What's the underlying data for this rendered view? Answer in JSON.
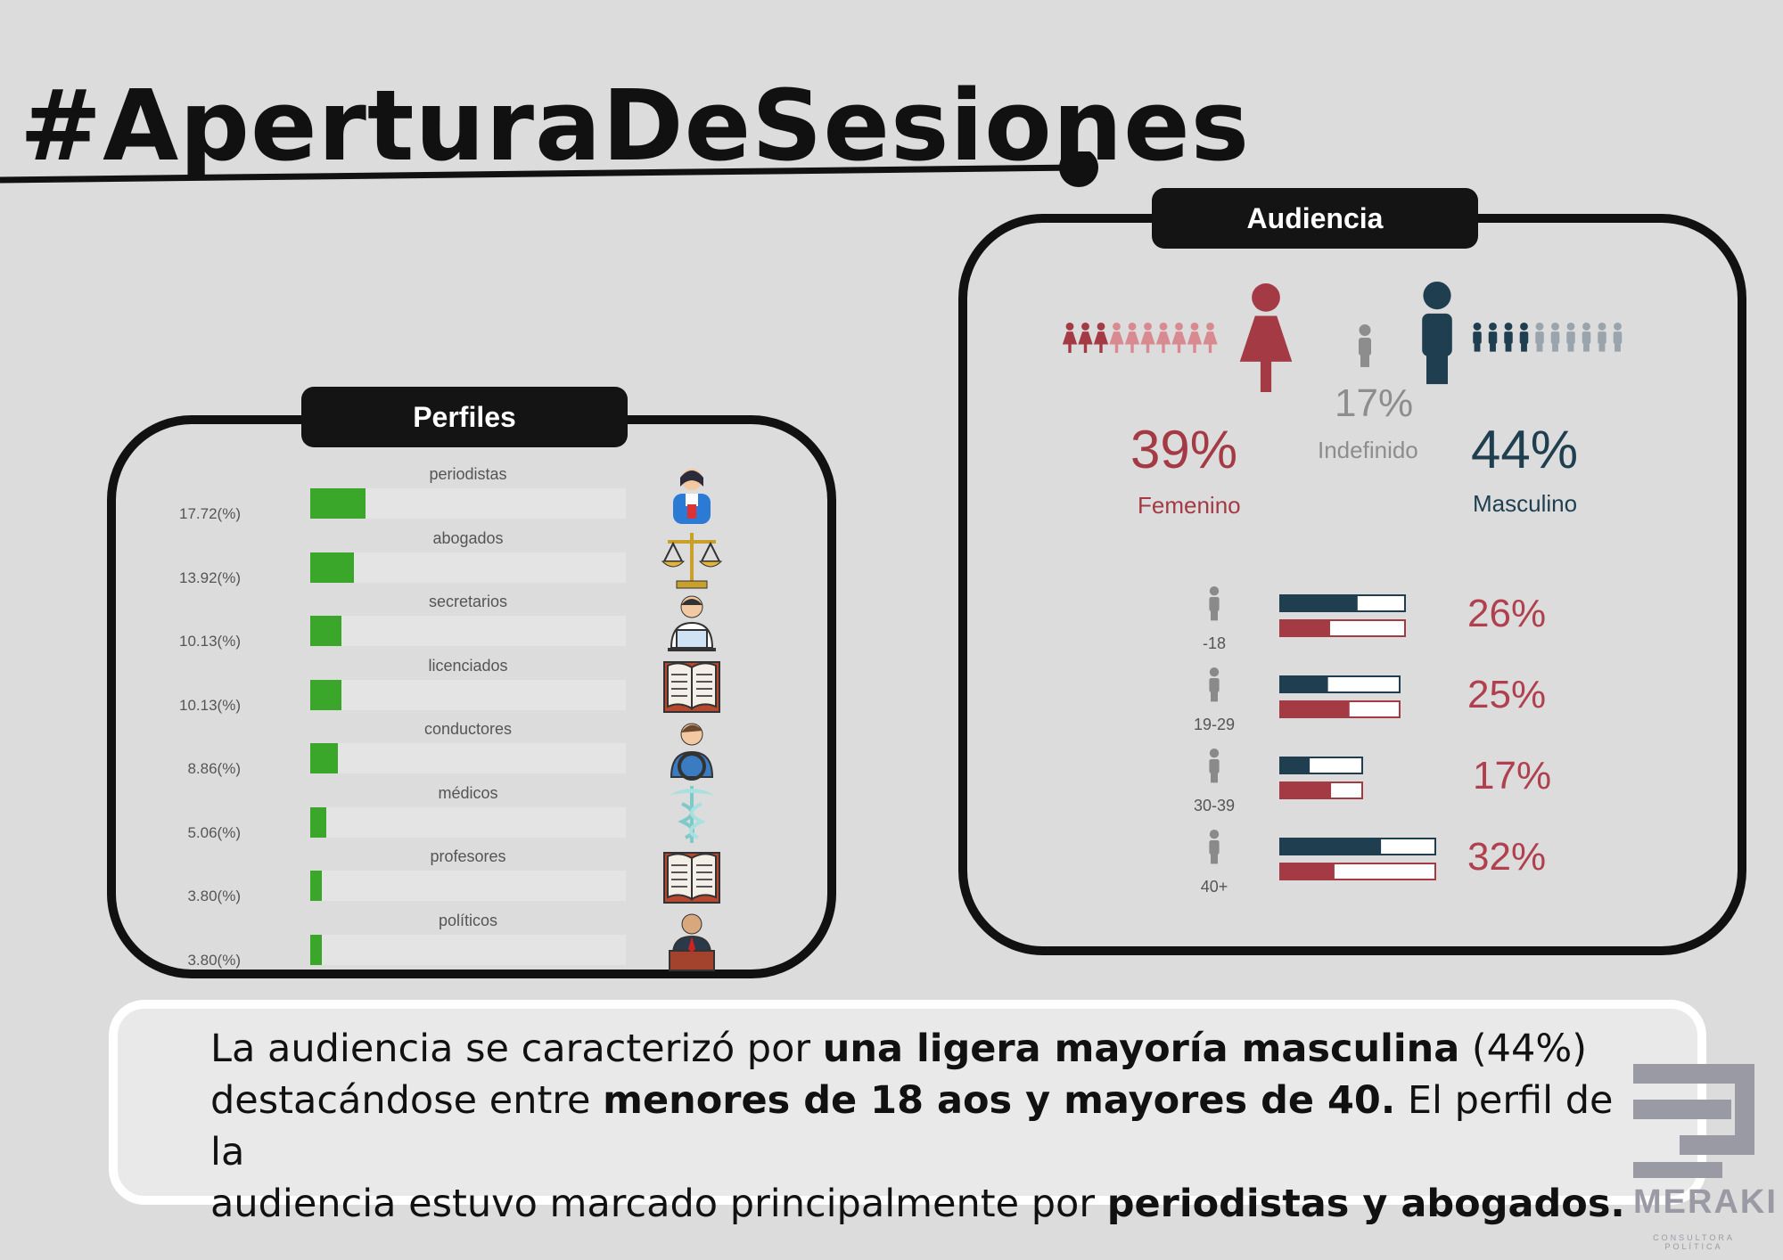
{
  "header": {
    "title": "#AperturaDeSesiones"
  },
  "perfiles": {
    "tab_label": "Perfiles",
    "items": [
      {
        "label": "periodistas",
        "value_text": "17.72(%)",
        "value": 17.72,
        "icon": "journalist-icon"
      },
      {
        "label": "abogados",
        "value_text": "13.92(%)",
        "value": 13.92,
        "icon": "scales-of-justice-icon"
      },
      {
        "label": "secretarios",
        "value_text": "10.13(%)",
        "value": 10.13,
        "icon": "secretary-laptop-icon"
      },
      {
        "label": "licenciados",
        "value_text": "10.13(%)",
        "value": 10.13,
        "icon": "open-book-icon"
      },
      {
        "label": "conductores",
        "value_text": "8.86(%)",
        "value": 8.86,
        "icon": "driver-icon"
      },
      {
        "label": "médicos",
        "value_text": "5.06(%)",
        "value": 5.06,
        "icon": "caduceus-icon"
      },
      {
        "label": "profesores",
        "value_text": "3.80(%)",
        "value": 3.8,
        "icon": "open-book-icon"
      },
      {
        "label": "políticos",
        "value_text": "3.80(%)",
        "value": 3.8,
        "icon": "politician-podium-icon"
      }
    ]
  },
  "audiencia": {
    "tab_label": "Audiencia",
    "gender": {
      "female": {
        "pct": "39%",
        "label": "Femenino"
      },
      "undefined": {
        "pct": "17%",
        "label": "Indefinido"
      },
      "male": {
        "pct": "44%",
        "label": "Masculino"
      }
    },
    "ages": [
      {
        "label": "-18",
        "pct": "26%",
        "male_share": 0.62,
        "female_share": 0.4,
        "icon": "baby-icon"
      },
      {
        "label": "19-29",
        "pct": "25%",
        "male_share": 0.4,
        "female_share": 0.58,
        "icon": "person-standing-icon"
      },
      {
        "label": "30-39",
        "pct": "17%",
        "male_share": 0.36,
        "female_share": 0.62,
        "icon": "person-walking-icon"
      },
      {
        "label": "40+",
        "pct": "32%",
        "male_share": 0.65,
        "female_share": 0.35,
        "icon": "businessman-icon"
      }
    ]
  },
  "chart_data": [
    {
      "type": "bar",
      "title": "Perfiles",
      "categories": [
        "periodistas",
        "abogados",
        "secretarios",
        "licenciados",
        "conductores",
        "médicos",
        "profesores",
        "políticos"
      ],
      "values": [
        17.72,
        13.92,
        10.13,
        10.13,
        8.86,
        5.06,
        3.8,
        3.8
      ]
    },
    {
      "type": "pie",
      "title": "Audiencia",
      "categories": [
        "Femenino",
        "Indefinido",
        "Masculino"
      ],
      "values": [
        39,
        17,
        44
      ]
    },
    {
      "type": "bar",
      "categories": [
        "-18",
        "19-29",
        "30-39",
        "40+"
      ],
      "values": [
        26,
        25,
        17,
        32
      ]
    }
  ],
  "summary": {
    "line1_a": "La audiencia se caracterizó por",
    "line1_b": "una ligera mayoría masculina",
    "line1_c": "(44%)",
    "line2_a": "destacándose entre",
    "line2_b": "menores de 18 aos y mayores de 40.",
    "line2_c": "El perfil de la",
    "line3_a": "audiencia estuvo marcado principalmente por",
    "line3_b": "periodistas y abogados."
  },
  "logo": {
    "name": "MERAKI",
    "subtitle": "CONSULTORA POLÍTICA"
  }
}
